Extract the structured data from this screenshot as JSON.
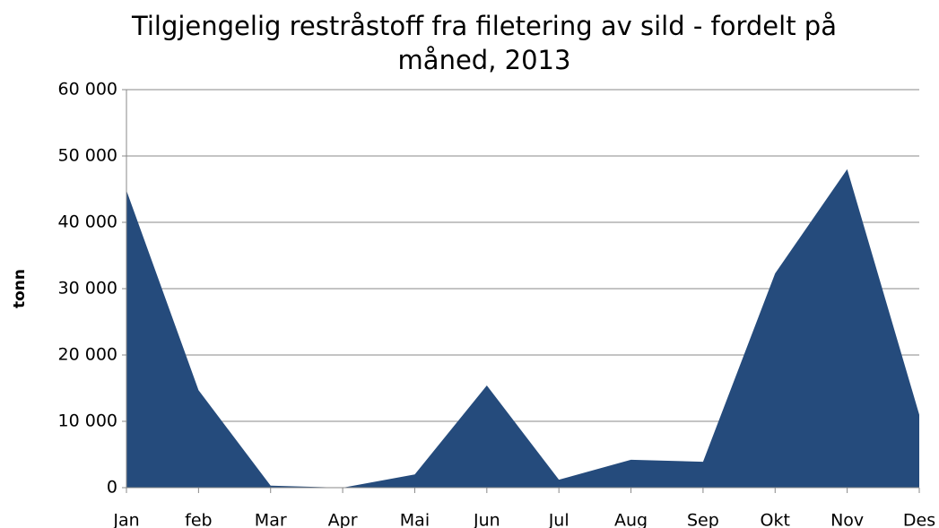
{
  "chart_data": {
    "type": "area",
    "title": "Tilgjengelig restråstoff fra filetering av sild  - fordelt på måned, 2013",
    "y_label": "tonn",
    "categories": [
      "Jan",
      "feb",
      "Mar",
      "Apr",
      "Mai",
      "Jun",
      "Jul",
      "Aug",
      "Sep",
      "Okt",
      "Nov",
      "Des"
    ],
    "values": [
      44800,
      14700,
      300,
      0,
      2000,
      15400,
      1200,
      4200,
      3900,
      32300,
      48000,
      11000
    ],
    "color": "#254b7c",
    "ylim": [
      0,
      60000
    ],
    "yticks": [
      0,
      {
        "value": 10000,
        "label": "10 000"
      },
      {
        "value": 20000,
        "label": "20 000"
      },
      {
        "value": 30000,
        "label": "30 000"
      },
      {
        "value": 40000,
        "label": "40 000"
      },
      {
        "value": 50000,
        "label": "50 000"
      },
      {
        "value": 60000,
        "label": "60 000"
      }
    ],
    "grid": true
  }
}
